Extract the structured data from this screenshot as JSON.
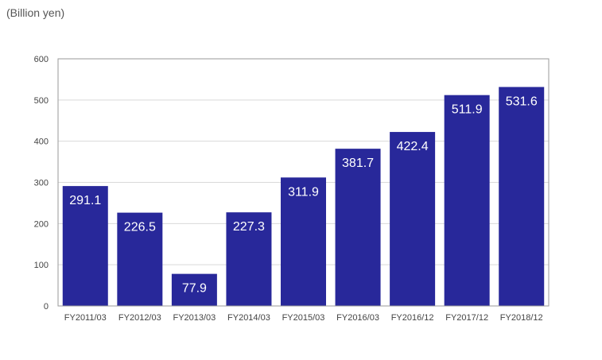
{
  "unit_label": "(Billion yen)",
  "chart_data": {
    "type": "bar",
    "ylabel": "(Billion yen)",
    "ylim": [
      0,
      600
    ],
    "yticks": [
      0,
      100,
      200,
      300,
      400,
      500,
      600
    ],
    "grid": true,
    "categories": [
      "FY2011/03",
      "FY2012/03",
      "FY2013/03",
      "FY2014/03",
      "FY2015/03",
      "FY2016/03",
      "FY2016/12",
      "FY2017/12",
      "FY2018/12"
    ],
    "values": [
      291.1,
      226.5,
      77.9,
      227.3,
      311.9,
      381.7,
      422.4,
      511.9,
      531.6
    ],
    "data_labels": [
      "291.1",
      "226.5",
      "77.9",
      "227.3",
      "311.9",
      "381.7",
      "422.4",
      "511.9",
      "531.6"
    ],
    "colors": {
      "bar": "#28289a",
      "grid": "#d9d9d9",
      "frame": "#9a9a9a"
    }
  }
}
